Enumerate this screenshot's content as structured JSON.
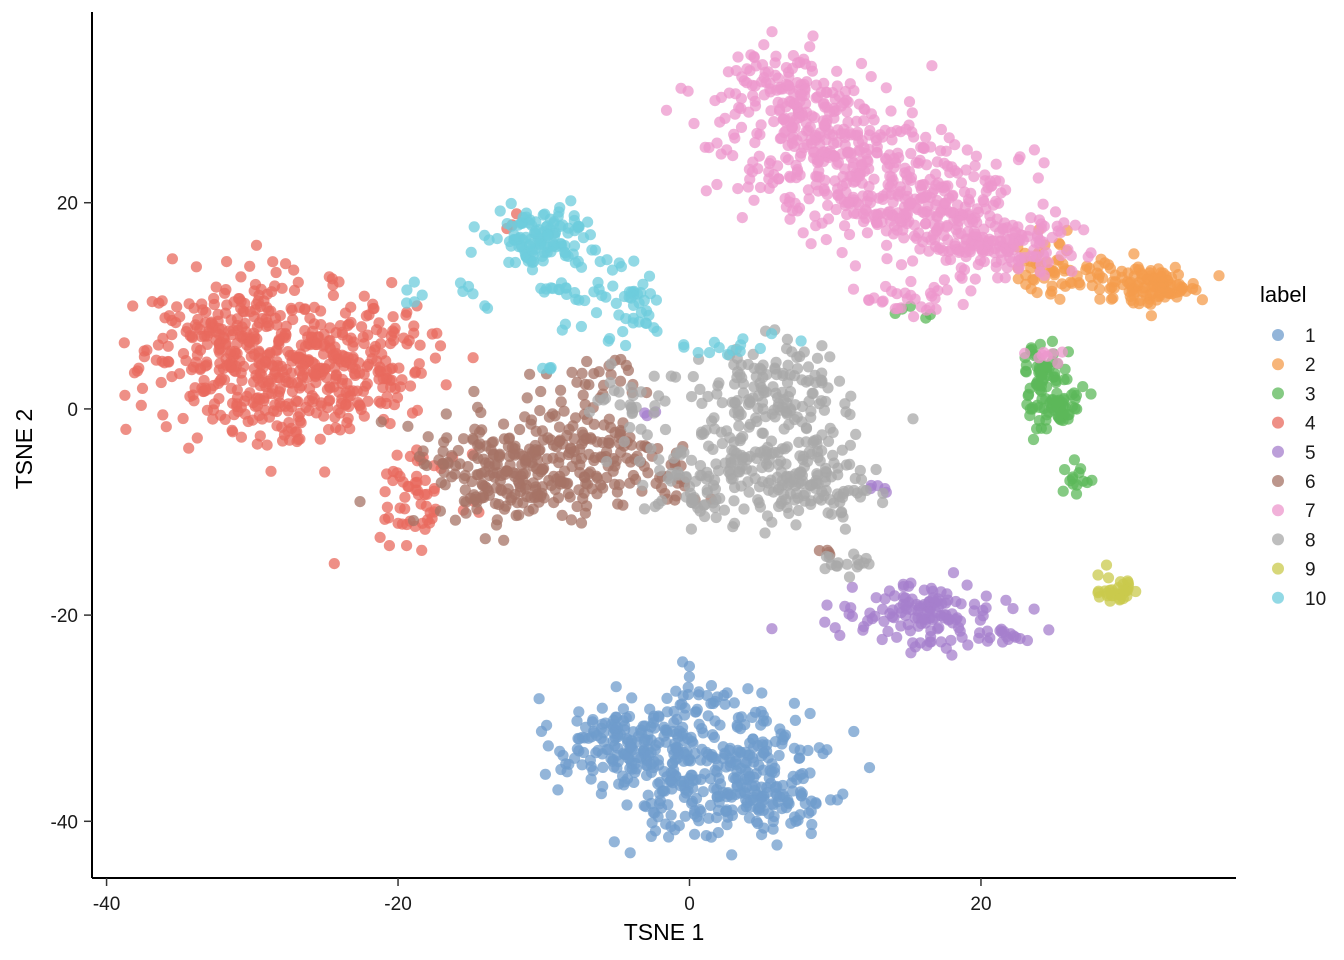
{
  "chart_data": {
    "type": "scatter",
    "title": "",
    "xlabel": "TSNE 1",
    "ylabel": "TSNE 2",
    "xlim": [
      -41,
      37.5
    ],
    "ylim": [
      -45.5,
      38.5
    ],
    "xticks": [
      -40,
      -20,
      0,
      20
    ],
    "yticks": [
      -40,
      -20,
      0,
      20
    ],
    "grid": false,
    "legend": {
      "title": "label",
      "position": "right"
    },
    "point_alpha": 0.75,
    "series": [
      {
        "name": "1",
        "color": "#6f9ccc",
        "clusters": [
          {
            "cx": -5,
            "cy": -32,
            "sx": 2.2,
            "sy": 2.0,
            "n": 110
          },
          {
            "cx": 0,
            "cy": -34,
            "sx": 3.5,
            "sy": 3.5,
            "n": 200
          },
          {
            "cx": 4,
            "cy": -38,
            "sx": 3.5,
            "sy": 2.0,
            "n": 130
          },
          {
            "cx": 5,
            "cy": -33,
            "sx": 2.5,
            "sy": 2.0,
            "n": 70
          },
          {
            "cx": 1,
            "cy": -27.5,
            "sx": 1.5,
            "sy": 0.5,
            "n": 12
          }
        ]
      },
      {
        "name": "2",
        "color": "#f49c4c",
        "clusters": [
          {
            "cx": 32,
            "cy": 12,
            "sx": 1.5,
            "sy": 0.9,
            "n": 90
          },
          {
            "cx": 27,
            "cy": 12.5,
            "sx": 2.5,
            "sy": 1.0,
            "n": 60
          },
          {
            "cx": 24.5,
            "cy": 15,
            "sx": 1.2,
            "sy": 1.5,
            "n": 20
          }
        ]
      },
      {
        "name": "3",
        "color": "#5cb85a",
        "clusters": [
          {
            "cx": 25,
            "cy": 1,
            "sx": 0.9,
            "sy": 1.6,
            "n": 80
          },
          {
            "cx": 24.2,
            "cy": 4.5,
            "sx": 0.8,
            "sy": 1.0,
            "n": 30
          },
          {
            "cx": 26.5,
            "cy": -7,
            "sx": 0.6,
            "sy": 0.8,
            "n": 14
          },
          {
            "cx": 15.5,
            "cy": 9.5,
            "sx": 0.6,
            "sy": 0.4,
            "n": 5
          }
        ]
      },
      {
        "name": "4",
        "color": "#e86a5e",
        "clusters": [
          {
            "cx": -31,
            "cy": 6,
            "sx": 3.5,
            "sy": 3.5,
            "n": 280
          },
          {
            "cx": -24,
            "cy": 5,
            "sx": 3.5,
            "sy": 3.0,
            "n": 220
          },
          {
            "cx": -27,
            "cy": 0,
            "sx": 3.5,
            "sy": 2.0,
            "n": 100
          },
          {
            "cx": -18.5,
            "cy": -8,
            "sx": 1.5,
            "sy": 2.5,
            "n": 60
          },
          {
            "cx": -12,
            "cy": 18.5,
            "sx": 0.5,
            "sy": 0.4,
            "n": 3
          }
        ]
      },
      {
        "name": "5",
        "color": "#a67fcc",
        "clusters": [
          {
            "cx": 16,
            "cy": -20,
            "sx": 2.5,
            "sy": 1.5,
            "n": 130
          },
          {
            "cx": 21.5,
            "cy": -22,
            "sx": 1.0,
            "sy": 0.4,
            "n": 18
          },
          {
            "cx": 12.8,
            "cy": -7.8,
            "sx": 0.6,
            "sy": 0.3,
            "n": 5
          },
          {
            "cx": -3,
            "cy": -0.3,
            "sx": 0.6,
            "sy": 0.2,
            "n": 3
          }
        ]
      },
      {
        "name": "6",
        "color": "#a67365",
        "clusters": [
          {
            "cx": -13,
            "cy": -6,
            "sx": 3.0,
            "sy": 3.0,
            "n": 200
          },
          {
            "cx": -7,
            "cy": -5,
            "sx": 2.5,
            "sy": 3.0,
            "n": 120
          },
          {
            "cx": -2.5,
            "cy": -7,
            "sx": 1.5,
            "sy": 1.5,
            "n": 30
          },
          {
            "cx": -6,
            "cy": 3,
            "sx": 2.0,
            "sy": 1.0,
            "n": 25
          },
          {
            "cx": 9,
            "cy": -14,
            "sx": 0.6,
            "sy": 0.3,
            "n": 4
          }
        ]
      },
      {
        "name": "7",
        "color": "#ec97cc",
        "clusters": [
          {
            "cx": 6,
            "cy": 31,
            "sx": 2.5,
            "sy": 2.0,
            "n": 110
          },
          {
            "cx": 10,
            "cy": 25,
            "sx": 3.5,
            "sy": 3.0,
            "n": 270
          },
          {
            "cx": 16,
            "cy": 20,
            "sx": 3.5,
            "sy": 2.5,
            "n": 240
          },
          {
            "cx": 21,
            "cy": 16,
            "sx": 2.5,
            "sy": 1.8,
            "n": 140
          },
          {
            "cx": 15,
            "cy": 11,
            "sx": 2.0,
            "sy": 0.8,
            "n": 30
          },
          {
            "cx": 24,
            "cy": 5.5,
            "sx": 1.0,
            "sy": 0.5,
            "n": 8
          }
        ]
      },
      {
        "name": "8",
        "color": "#a8a8a8",
        "clusters": [
          {
            "cx": 6,
            "cy": 2,
            "sx": 2.5,
            "sy": 2.2,
            "n": 130
          },
          {
            "cx": 4,
            "cy": -6,
            "sx": 3.5,
            "sy": 2.5,
            "n": 220
          },
          {
            "cx": 9,
            "cy": -8,
            "sx": 1.8,
            "sy": 1.5,
            "n": 50
          },
          {
            "cx": -3,
            "cy": 1,
            "sx": 1.8,
            "sy": 1.5,
            "n": 30
          },
          {
            "cx": 11,
            "cy": -15,
            "sx": 1.0,
            "sy": 0.5,
            "n": 16
          }
        ]
      },
      {
        "name": "9",
        "color": "#c9c94c",
        "clusters": [
          {
            "cx": 29.3,
            "cy": -17.8,
            "sx": 0.9,
            "sy": 0.45,
            "n": 30
          },
          {
            "cx": 28.5,
            "cy": -15.5,
            "sx": 0.3,
            "sy": 0.5,
            "n": 3
          }
        ]
      },
      {
        "name": "10",
        "color": "#6dccdc",
        "clusters": [
          {
            "cx": -10,
            "cy": 16.5,
            "sx": 1.7,
            "sy": 1.4,
            "n": 120
          },
          {
            "cx": -4,
            "cy": 10,
            "sx": 1.2,
            "sy": 1.6,
            "n": 40
          },
          {
            "cx": -8.5,
            "cy": 11.5,
            "sx": 1.0,
            "sy": 0.4,
            "n": 15
          },
          {
            "cx": -5.5,
            "cy": 14.5,
            "sx": 1.4,
            "sy": 0.5,
            "n": 8
          },
          {
            "cx": -19,
            "cy": 11,
            "sx": 0.5,
            "sy": 0.5,
            "n": 5
          },
          {
            "cx": -15,
            "cy": 11,
            "sx": 0.9,
            "sy": 0.6,
            "n": 6
          },
          {
            "cx": 2,
            "cy": 6,
            "sx": 3.0,
            "sy": 0.6,
            "n": 15
          },
          {
            "cx": -9.5,
            "cy": 4,
            "sx": 0.4,
            "sy": 0.4,
            "n": 4
          },
          {
            "cx": -8,
            "cy": 8,
            "sx": 0.4,
            "sy": 0.4,
            "n": 3
          }
        ]
      }
    ]
  }
}
